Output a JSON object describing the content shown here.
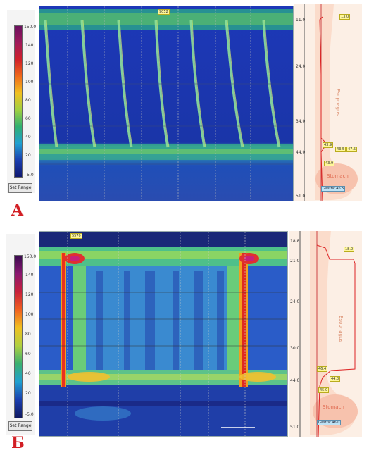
{
  "panels": [
    {
      "letter": "A",
      "colorbar_ticks": [
        "150.0",
        "140",
        "120",
        "100",
        "80",
        "60",
        "40",
        "20",
        "-5.0"
      ],
      "button_label": "Set Range",
      "top_marker": "9052",
      "depth_ticks": [
        "11.0",
        "24.0",
        "34.0",
        "44.0",
        "51.0"
      ],
      "labels": {
        "esophagus": "Esophagus",
        "stomach": "Stomach",
        "gastric_box": "Gastric 46.5"
      },
      "tags": [
        "13.0",
        "43.9",
        "43.5",
        "47.5",
        "43.9"
      ]
    },
    {
      "letter": "Б",
      "colorbar_ticks": [
        "150.0",
        "140",
        "120",
        "100",
        "80",
        "60",
        "40",
        "20",
        "-5.0"
      ],
      "button_label": "Set Range",
      "top_marker": "5570",
      "depth_ticks": [
        "18.8",
        "21.0",
        "24.0",
        "30.0",
        "44.0",
        "51.0"
      ],
      "labels": {
        "esophagus": "Esophagus",
        "stomach": "Stomach",
        "gastric_box": "Gastric 46.0"
      },
      "tags": [
        "18.0",
        "46.4",
        "44.0",
        "45.0"
      ]
    }
  ],
  "colors": {
    "letter": "#d21f25",
    "background_plot": "#1a2fa8",
    "esophagus_region": "#fcefe5"
  }
}
